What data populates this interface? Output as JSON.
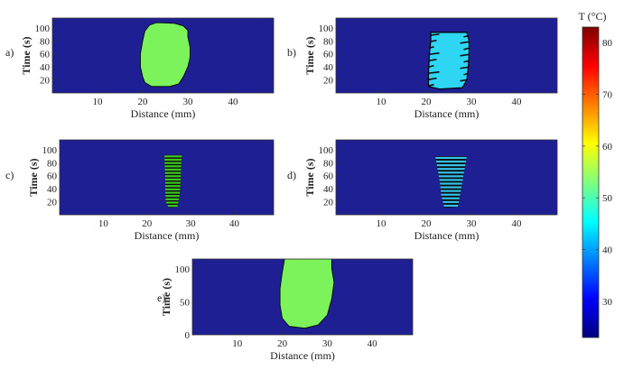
{
  "colorbar": {
    "title": "T (°C)",
    "range": [
      23,
      83
    ],
    "ticks": [
      30,
      40,
      50,
      60,
      70,
      80
    ],
    "colors": [
      "#00007f",
      "#0000ff",
      "#007fff",
      "#00ffff",
      "#7fff7f",
      "#ffff00",
      "#ff7f00",
      "#ff0000",
      "#7f0000"
    ]
  },
  "chart_data": [
    {
      "type": "heatmap",
      "panel_label": "a)",
      "xlabel": "Distance (mm)",
      "ylabel": "Time (s)",
      "xticks": [
        10,
        20,
        30,
        40
      ],
      "yticks": [
        20,
        40,
        60,
        80,
        100
      ],
      "xlim": [
        0,
        49
      ],
      "ylim": [
        0,
        115
      ],
      "background_temp": 23,
      "region": {
        "style": "solid",
        "temperature": 52,
        "fill": "#7cf35a",
        "boundary": [
          [
            23,
            108
          ],
          [
            27,
            107
          ],
          [
            29,
            103
          ],
          [
            30,
            96
          ],
          [
            30,
            86
          ],
          [
            30.5,
            70
          ],
          [
            30.5,
            55
          ],
          [
            30,
            40
          ],
          [
            29,
            25
          ],
          [
            28,
            14
          ],
          [
            26,
            10
          ],
          [
            22,
            10
          ],
          [
            20.5,
            16
          ],
          [
            20,
            25
          ],
          [
            19.5,
            40
          ],
          [
            19.5,
            60
          ],
          [
            20,
            80
          ],
          [
            20.5,
            95
          ],
          [
            21.5,
            104
          ]
        ]
      }
    },
    {
      "type": "heatmap",
      "panel_label": "b)",
      "xlabel": "Distance (mm)",
      "ylabel": "Time (s)",
      "xticks": [
        10,
        20,
        30,
        40
      ],
      "yticks": [
        20,
        40,
        60,
        80,
        100
      ],
      "xlim": [
        0,
        49
      ],
      "ylim": [
        0,
        115
      ],
      "background_temp": 23,
      "region": {
        "style": "striped",
        "temperature": 42,
        "fill": "#2fd6f4",
        "boundary": [
          [
            21,
            93
          ],
          [
            29,
            93
          ],
          [
            29.5,
            80
          ],
          [
            29.5,
            60
          ],
          [
            29.3,
            40
          ],
          [
            29,
            20
          ],
          [
            28,
            8
          ],
          [
            23,
            6
          ],
          [
            20.5,
            10
          ],
          [
            20.5,
            30
          ],
          [
            20.7,
            60
          ],
          [
            21,
            80
          ]
        ],
        "stripe_count": 9
      }
    },
    {
      "type": "heatmap",
      "panel_label": "c)",
      "xlabel": "Distance (mm)",
      "ylabel": "Time (s)",
      "xticks": [
        10,
        20,
        30,
        40
      ],
      "yticks": [
        20,
        40,
        60,
        80,
        100
      ],
      "xlim": [
        0,
        49
      ],
      "ylim": [
        0,
        115
      ],
      "background_temp": 23,
      "region": {
        "style": "banded",
        "temperature": 52,
        "fill": "#3ec91f",
        "boundary": [
          [
            24,
            92
          ],
          [
            28,
            92
          ],
          [
            27.8,
            70
          ],
          [
            27.7,
            50
          ],
          [
            27.5,
            30
          ],
          [
            27,
            12
          ],
          [
            25,
            11
          ],
          [
            24.3,
            20
          ],
          [
            24.2,
            40
          ],
          [
            24.2,
            60
          ],
          [
            24,
            80
          ]
        ],
        "band_count": 16
      }
    },
    {
      "type": "heatmap",
      "panel_label": "d)",
      "xlabel": "Distance (mm)",
      "ylabel": "Time (s)",
      "xticks": [
        10,
        20,
        30,
        40
      ],
      "yticks": [
        20,
        40,
        60,
        80,
        100
      ],
      "xlim": [
        0,
        49
      ],
      "ylim": [
        0,
        115
      ],
      "background_temp": 23,
      "region": {
        "style": "banded",
        "temperature": 42,
        "fill": "#35c3e6",
        "boundary": [
          [
            22,
            90
          ],
          [
            29,
            90
          ],
          [
            28.5,
            70
          ],
          [
            28,
            50
          ],
          [
            27.5,
            30
          ],
          [
            27,
            12
          ],
          [
            24,
            11
          ],
          [
            23.3,
            30
          ],
          [
            23,
            50
          ],
          [
            22.5,
            70
          ]
        ],
        "band_count": 14
      }
    },
    {
      "type": "heatmap",
      "panel_label": "e)",
      "xlabel": "Distance (mm)",
      "ylabel": "Time (s)",
      "xticks": [
        10,
        20,
        30,
        40
      ],
      "yticks": [
        0,
        50,
        100
      ],
      "xlim": [
        0,
        49
      ],
      "ylim": [
        0,
        115
      ],
      "background_temp": 23,
      "region": {
        "style": "solid",
        "temperature": 52,
        "fill": "#7cf35a",
        "boundary": [
          [
            20.5,
            115
          ],
          [
            31,
            115
          ],
          [
            31,
            100
          ],
          [
            31.5,
            80
          ],
          [
            31,
            55
          ],
          [
            30,
            30
          ],
          [
            28,
            15
          ],
          [
            25,
            10
          ],
          [
            21.5,
            13
          ],
          [
            20,
            25
          ],
          [
            19.5,
            45
          ],
          [
            19.5,
            70
          ],
          [
            20,
            95
          ]
        ]
      }
    }
  ]
}
